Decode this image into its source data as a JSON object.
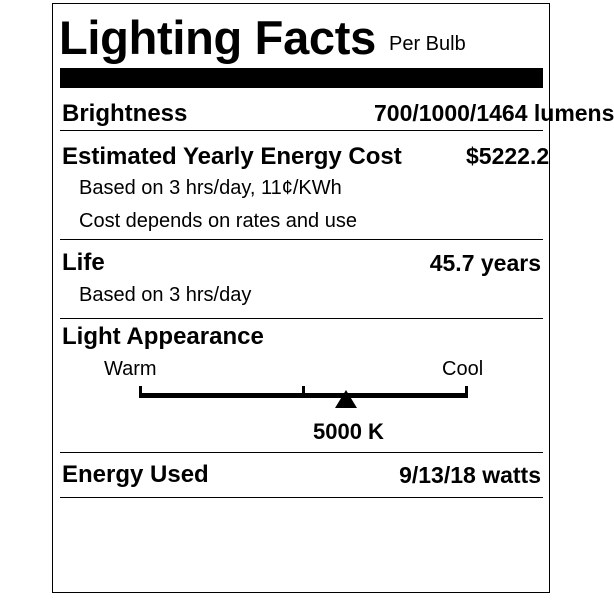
{
  "label": {
    "title": "Lighting Facts",
    "subtitle": "Per Bulb"
  },
  "brightness": {
    "label": "Brightness",
    "value": "700/1000/1464 lumens"
  },
  "cost": {
    "label": "Estimated Yearly Energy Cost",
    "value": "$5222.2",
    "note1": "Based on 3 hrs/day, 11¢/KWh",
    "note2": "Cost depends on rates and use"
  },
  "life": {
    "label": "Life",
    "value": "45.7 years",
    "note": "Based on 3 hrs/day"
  },
  "appearance": {
    "label": "Light Appearance",
    "warm_label": "Warm",
    "cool_label": "Cool",
    "value_label": "5000 K",
    "kelvin": 5000
  },
  "energy": {
    "label": "Energy Used",
    "value": "9/13/18 watts"
  }
}
